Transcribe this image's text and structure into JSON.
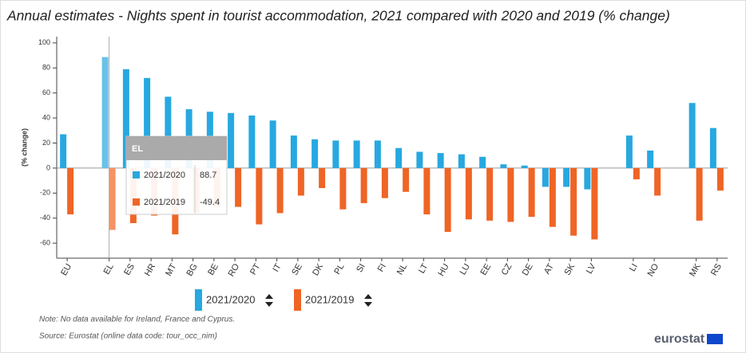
{
  "chart_data": {
    "type": "bar",
    "title": "Annual estimates - Nights spent in tourist accommodation, 2021 compared with 2020 and 2019 (% change)",
    "ylabel": "(% change)",
    "categories": [
      "EU",
      null,
      "EL",
      "ES",
      "HR",
      "MT",
      "BG",
      "BE",
      "RO",
      "PT",
      "IT",
      "SE",
      "DK",
      "PL",
      "SI",
      "FI",
      "NL",
      "LT",
      "HU",
      "LU",
      "EE",
      "CZ",
      "DE",
      "AT",
      "SK",
      "LV",
      null,
      "LI",
      "NO",
      null,
      "MK",
      "RS"
    ],
    "series": [
      {
        "name": "2021/2020",
        "color": "#27a8e0",
        "values": [
          27,
          null,
          88.7,
          79,
          72,
          57,
          47,
          45,
          44,
          42,
          38,
          26,
          23,
          22,
          22,
          22,
          16,
          13,
          12,
          11,
          9,
          3,
          2,
          -15,
          -15,
          -17,
          null,
          26,
          14,
          null,
          52,
          32
        ]
      },
      {
        "name": "2021/2019",
        "color": "#ef6525",
        "values": [
          -37,
          null,
          -49.4,
          -44,
          -38,
          -53,
          -36,
          -31,
          -31,
          -45,
          -36,
          -22,
          -16,
          -33,
          -28,
          -24,
          -19,
          -37,
          -51,
          -41,
          -42,
          -43,
          -39,
          -47,
          -54,
          -57,
          null,
          -9,
          -22,
          null,
          -42,
          -18
        ]
      }
    ],
    "ylim": [
      -72,
      105
    ],
    "yticks": [
      -60,
      -40,
      -20,
      0,
      20,
      40,
      60,
      80,
      100
    ],
    "grid": false,
    "note": "Note: No data available for Ireland, France and Cyprus.",
    "source": "Source: Eurostat (online data code: tour_occ_nim)",
    "logo": "eurostat"
  }
}
